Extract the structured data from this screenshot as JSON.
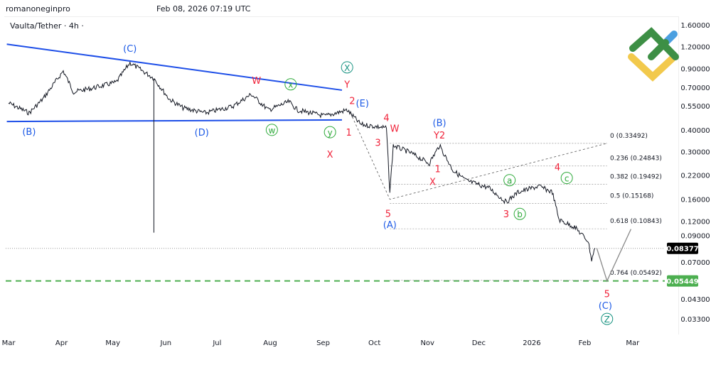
{
  "header": {
    "author": "romanoneginpro",
    "timestamp": "Feb 08, 2026 07:19 UTC",
    "symbol": "Vaulta/Tether · 4h ·"
  },
  "colors": {
    "price": "#131722",
    "trend": "#1e4fe8",
    "red": "#f0233a",
    "blue": "#1e5be6",
    "green": "#2eaa3a",
    "teal": "#14917f",
    "target": "#4caf50",
    "last": "#000000"
  },
  "chart_data": {
    "type": "line",
    "scale": "log",
    "ylim": [
      0.029,
      1.75
    ],
    "xlim": [
      "2025-02-27",
      "2026-03-20"
    ],
    "y_ticks": [
      "1.60000",
      "1.20000",
      "0.90000",
      "0.70000",
      "0.55000",
      "0.40000",
      "0.30000",
      "0.22000",
      "0.16000",
      "0.12000",
      "0.09000",
      "0.07000",
      "0.04300",
      "0.03300"
    ],
    "x_ticks": [
      [
        "2025-03-01",
        "Mar"
      ],
      [
        "2025-04-01",
        "Apr"
      ],
      [
        "2025-05-01",
        "May"
      ],
      [
        "2025-06-01",
        "Jun"
      ],
      [
        "2025-07-01",
        "Jul"
      ],
      [
        "2025-08-01",
        "Aug"
      ],
      [
        "2025-09-01",
        "Sep"
      ],
      [
        "2025-10-01",
        "Oct"
      ],
      [
        "2025-11-01",
        "Nov"
      ],
      [
        "2025-12-01",
        "Dec"
      ],
      [
        "2026-01-01",
        "2026"
      ],
      [
        "2026-02-01",
        "Feb"
      ],
      [
        "2026-03-01",
        "Mar"
      ]
    ],
    "series": [
      [
        "2025-03-01",
        0.57
      ],
      [
        "2025-03-13",
        0.5
      ],
      [
        "2025-03-21",
        0.6
      ],
      [
        "2025-04-02",
        0.87
      ],
      [
        "2025-04-08",
        0.66
      ],
      [
        "2025-04-18",
        0.69
      ],
      [
        "2025-05-03",
        0.75
      ],
      [
        "2025-05-11",
        0.97
      ],
      [
        "2025-05-25",
        0.79
      ],
      [
        "2025-06-03",
        0.6
      ],
      [
        "2025-06-11",
        0.535
      ],
      [
        "2025-06-24",
        0.5
      ],
      [
        "2025-07-10",
        0.545
      ],
      [
        "2025-07-21",
        0.64
      ],
      [
        "2025-07-31",
        0.52
      ],
      [
        "2025-08-12",
        0.58
      ],
      [
        "2025-08-17",
        0.52
      ],
      [
        "2025-09-02",
        0.48
      ],
      [
        "2025-09-15",
        0.52
      ],
      [
        "2025-09-23",
        0.43
      ],
      [
        "2025-10-08",
        0.41
      ],
      [
        "2025-10-10",
        0.176
      ],
      [
        "2025-10-12",
        0.325
      ],
      [
        "2025-10-22",
        0.296
      ],
      [
        "2025-11-02",
        0.257
      ],
      [
        "2025-11-08",
        0.325
      ],
      [
        "2025-11-16",
        0.234
      ],
      [
        "2025-11-24",
        0.204
      ],
      [
        "2025-12-07",
        0.186
      ],
      [
        "2025-12-17",
        0.154
      ],
      [
        "2025-12-24",
        0.176
      ],
      [
        "2026-01-05",
        0.19
      ],
      [
        "2026-01-13",
        0.176
      ],
      [
        "2026-01-17",
        0.122
      ],
      [
        "2026-01-26",
        0.111
      ],
      [
        "2026-02-03",
        0.092
      ],
      [
        "2026-02-05",
        0.072
      ],
      [
        "2026-02-07",
        0.084
      ]
    ],
    "wick": {
      "date": "2025-05-25",
      "low": 0.103,
      "high": 0.79
    },
    "trendlines": [
      {
        "from": [
          "2025-02-28",
          1.24
        ],
        "to": [
          "2025-09-12",
          0.676
        ]
      },
      {
        "from": [
          "2025-02-28",
          0.447
        ],
        "to": [
          "2025-09-12",
          0.456
        ]
      }
    ],
    "fib": {
      "from": "2025-10-10",
      "to": "2026-02-14",
      "levels": [
        {
          "label": "0 (0.33492)",
          "price": 0.33492
        },
        {
          "label": "0.236 (0.24843)",
          "price": 0.24843
        },
        {
          "label": "0.382 (0.19492)",
          "price": 0.19492
        },
        {
          "label": "0.5 (0.15168)",
          "price": 0.15168
        },
        {
          "label": "0.618 (0.10843)",
          "price": 0.10843
        },
        {
          "label": "0.764 (0.05492)",
          "price": 0.05492
        }
      ]
    },
    "dotted_path": [
      [
        "2025-09-17",
        0.5
      ],
      [
        "2025-10-10",
        0.16
      ],
      [
        "2026-02-14",
        0.33492
      ]
    ],
    "projection": [
      [
        "2026-02-08",
        0.084
      ],
      [
        "2026-02-14",
        0.0545
      ],
      [
        "2026-02-28",
        0.108
      ]
    ],
    "last_price": {
      "value": 0.08377,
      "label": "0.08377"
    },
    "target": {
      "value": 0.05449,
      "label": "0.05449"
    },
    "wave_labels": [
      {
        "t": "(C)",
        "c": "blue",
        "d": "2025-05-11",
        "p": 1.175
      },
      {
        "t": "(B)",
        "c": "blue",
        "d": "2025-03-13",
        "p": 0.392
      },
      {
        "t": "(D)",
        "c": "blue",
        "d": "2025-06-22",
        "p": 0.388
      },
      {
        "t": "W",
        "c": "red",
        "d": "2025-07-24",
        "p": 0.77
      },
      {
        "t": "x",
        "c": "green",
        "o": 1,
        "d": "2025-08-13",
        "p": 0.73
      },
      {
        "t": "w",
        "c": "green",
        "o": 1,
        "d": "2025-08-02",
        "p": 0.4
      },
      {
        "t": "y",
        "c": "green",
        "o": 1,
        "d": "2025-09-05",
        "p": 0.388
      },
      {
        "t": "X",
        "c": "teal",
        "o": 1,
        "d": "2025-09-15",
        "p": 0.913
      },
      {
        "t": "Y",
        "c": "red",
        "d": "2025-09-15",
        "p": 0.73
      },
      {
        "t": "2",
        "c": "red",
        "d": "2025-09-18",
        "p": 0.59
      },
      {
        "t": "(E)",
        "c": "blue",
        "d": "2025-09-15",
        "p": 0.571
      },
      {
        "t": "1",
        "c": "red",
        "d": "2025-09-16",
        "p": 0.388
      },
      {
        "t": "X",
        "c": "red",
        "d": "2025-09-05",
        "p": 0.29
      },
      {
        "t": "3",
        "c": "red",
        "d": "2025-10-03",
        "p": 0.34
      },
      {
        "t": "4",
        "c": "red",
        "d": "2025-10-08",
        "p": 0.47
      },
      {
        "t": "W",
        "c": "red",
        "d": "2025-10-11",
        "p": 0.41
      },
      {
        "t": "(B)",
        "c": "blue",
        "d": "2025-11-08",
        "p": 0.44
      },
      {
        "t": "Y2",
        "c": "red",
        "d": "2025-11-08",
        "p": 0.375
      },
      {
        "t": "1",
        "c": "red",
        "d": "2025-11-07",
        "p": 0.24
      },
      {
        "t": "X",
        "c": "red",
        "d": "2025-11-04",
        "p": 0.203
      },
      {
        "t": "5",
        "c": "red",
        "d": "2025-10-09",
        "p": 0.133
      },
      {
        "t": "(A)",
        "c": "blue",
        "d": "2025-10-10",
        "p": 0.115
      },
      {
        "t": "a",
        "c": "green",
        "o": 1,
        "d": "2025-12-19",
        "p": 0.206
      },
      {
        "t": "b",
        "c": "green",
        "o": 1,
        "d": "2025-12-25",
        "p": 0.132
      },
      {
        "t": "3",
        "c": "red",
        "d": "2025-12-17",
        "p": 0.132
      },
      {
        "t": "4",
        "c": "red",
        "d": "2026-01-16",
        "p": 0.245
      },
      {
        "t": "c",
        "c": "green",
        "o": 1,
        "d": "2026-01-15",
        "p": 0.212
      },
      {
        "t": "5",
        "c": "red",
        "d": "2026-02-14",
        "p": 0.046
      },
      {
        "t": "(C)",
        "c": "blue",
        "d": "2026-02-13",
        "p": 0.0395
      },
      {
        "t": "Z",
        "c": "teal",
        "o": 1,
        "d": "2026-02-14",
        "p": 0.033
      }
    ]
  }
}
